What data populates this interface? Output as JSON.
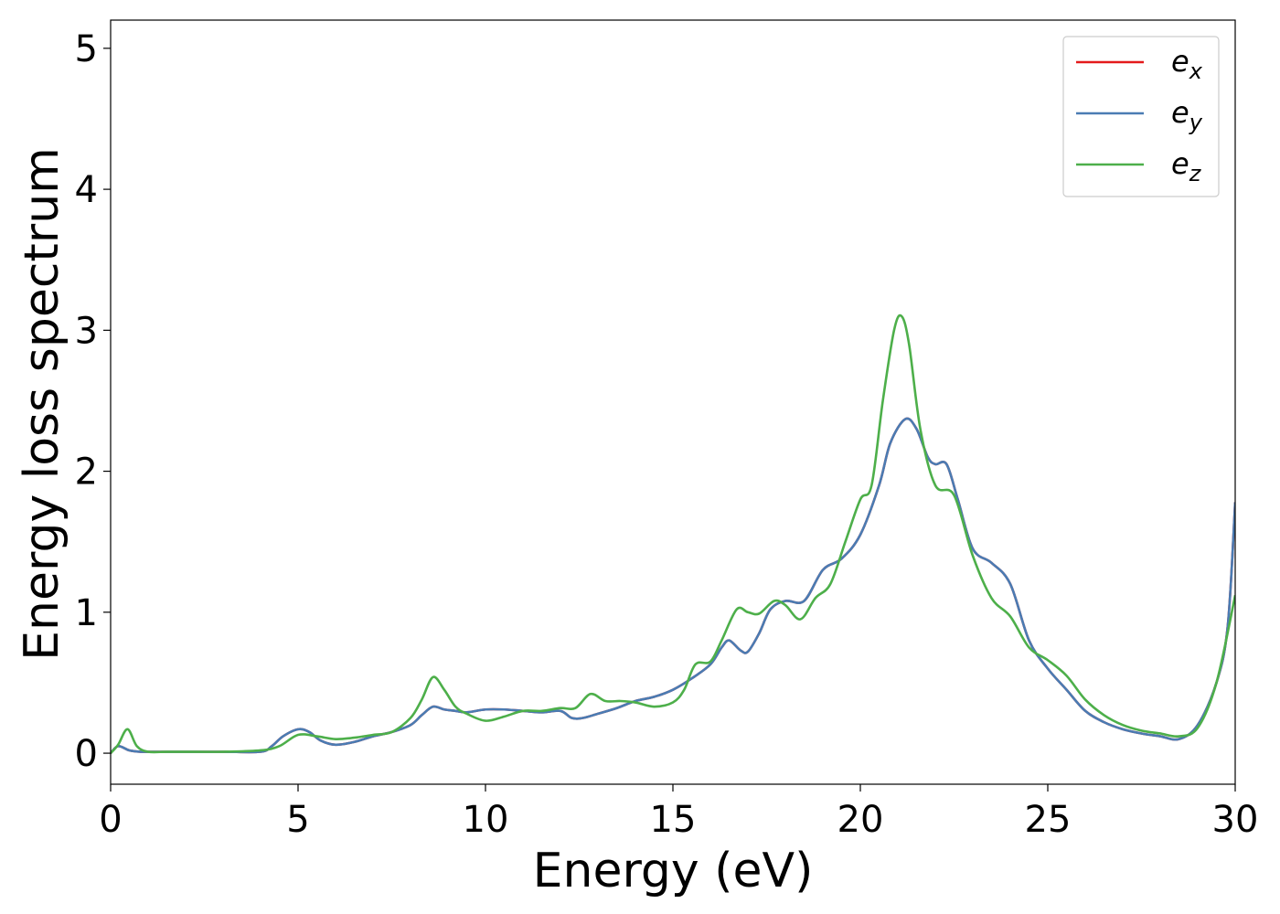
{
  "chart_data": {
    "type": "line",
    "xlabel": "Energy (eV)",
    "ylabel": "Energy loss spectrum",
    "xlim": [
      0,
      30
    ],
    "ylim": [
      -0.22,
      5.2
    ],
    "xticks": [
      0,
      5,
      10,
      15,
      20,
      25,
      30
    ],
    "yticks": [
      0,
      1,
      2,
      3,
      4,
      5
    ],
    "grid": false,
    "legend_position": "top-right",
    "series": [
      {
        "name": "e_x",
        "label_base": "e",
        "label_sub": "x",
        "color": "#e41a1c",
        "x": [
          0,
          0.2,
          0.5,
          0.8,
          1,
          1.5,
          2,
          3,
          4,
          4.3,
          4.6,
          5,
          5.3,
          5.6,
          6,
          6.5,
          7,
          7.5,
          8,
          8.3,
          8.6,
          8.9,
          9.2,
          9.5,
          10,
          10.5,
          11,
          11.5,
          12,
          12.3,
          12.6,
          13,
          13.5,
          14,
          14.5,
          15,
          15.5,
          16,
          16.3,
          16.5,
          16.8,
          17,
          17.3,
          17.6,
          18,
          18.5,
          19,
          19.5,
          20,
          20.5,
          20.8,
          21.2,
          21.5,
          21.8,
          22,
          22.3,
          22.6,
          23,
          23.5,
          24,
          24.5,
          25,
          25.5,
          26,
          26.5,
          27,
          27.5,
          28,
          28.5,
          29,
          29.5,
          29.8,
          30
        ],
        "y": [
          0,
          0.05,
          0.02,
          0.01,
          0.01,
          0.01,
          0.01,
          0.01,
          0.01,
          0.05,
          0.12,
          0.17,
          0.15,
          0.09,
          0.06,
          0.08,
          0.12,
          0.15,
          0.2,
          0.27,
          0.33,
          0.31,
          0.3,
          0.29,
          0.31,
          0.31,
          0.3,
          0.29,
          0.3,
          0.25,
          0.25,
          0.28,
          0.32,
          0.37,
          0.4,
          0.45,
          0.53,
          0.63,
          0.75,
          0.8,
          0.73,
          0.72,
          0.85,
          1.02,
          1.08,
          1.08,
          1.3,
          1.38,
          1.55,
          1.9,
          2.2,
          2.37,
          2.3,
          2.1,
          2.05,
          2.05,
          1.8,
          1.45,
          1.35,
          1.2,
          0.8,
          0.6,
          0.45,
          0.3,
          0.22,
          0.17,
          0.14,
          0.12,
          0.1,
          0.2,
          0.5,
          0.9,
          1.78
        ]
      },
      {
        "name": "e_y",
        "label_base": "e",
        "label_sub": "y",
        "color": "#4a7cb3",
        "x": [
          0,
          0.2,
          0.5,
          0.8,
          1,
          1.5,
          2,
          3,
          4,
          4.3,
          4.6,
          5,
          5.3,
          5.6,
          6,
          6.5,
          7,
          7.5,
          8,
          8.3,
          8.6,
          8.9,
          9.2,
          9.5,
          10,
          10.5,
          11,
          11.5,
          12,
          12.3,
          12.6,
          13,
          13.5,
          14,
          14.5,
          15,
          15.5,
          16,
          16.3,
          16.5,
          16.8,
          17,
          17.3,
          17.6,
          18,
          18.5,
          19,
          19.5,
          20,
          20.5,
          20.8,
          21.2,
          21.5,
          21.8,
          22,
          22.3,
          22.6,
          23,
          23.5,
          24,
          24.5,
          25,
          25.5,
          26,
          26.5,
          27,
          27.5,
          28,
          28.5,
          29,
          29.5,
          29.8,
          30
        ],
        "y": [
          0,
          0.05,
          0.02,
          0.01,
          0.01,
          0.01,
          0.01,
          0.01,
          0.01,
          0.05,
          0.12,
          0.17,
          0.15,
          0.09,
          0.06,
          0.08,
          0.12,
          0.15,
          0.2,
          0.27,
          0.33,
          0.31,
          0.3,
          0.29,
          0.31,
          0.31,
          0.3,
          0.29,
          0.3,
          0.25,
          0.25,
          0.28,
          0.32,
          0.37,
          0.4,
          0.45,
          0.53,
          0.63,
          0.75,
          0.8,
          0.73,
          0.72,
          0.85,
          1.02,
          1.08,
          1.08,
          1.3,
          1.38,
          1.55,
          1.9,
          2.2,
          2.37,
          2.3,
          2.1,
          2.05,
          2.05,
          1.8,
          1.45,
          1.35,
          1.2,
          0.8,
          0.6,
          0.45,
          0.3,
          0.22,
          0.17,
          0.14,
          0.12,
          0.1,
          0.2,
          0.5,
          0.9,
          1.78
        ]
      },
      {
        "name": "e_z",
        "label_base": "e",
        "label_sub": "z",
        "color": "#4daf4a",
        "x": [
          0,
          0.2,
          0.45,
          0.7,
          1,
          1.5,
          2,
          3,
          4,
          4.5,
          5,
          5.5,
          6,
          6.5,
          7,
          7.5,
          8,
          8.3,
          8.6,
          8.9,
          9.2,
          9.5,
          10,
          10.5,
          11,
          11.5,
          12,
          12.4,
          12.8,
          13.2,
          13.6,
          14,
          14.5,
          15,
          15.3,
          15.6,
          16,
          16.3,
          16.7,
          17,
          17.3,
          17.7,
          18,
          18.4,
          18.8,
          19.2,
          19.6,
          20,
          20.3,
          20.6,
          20.9,
          21.1,
          21.3,
          21.6,
          22,
          22.5,
          23,
          23.5,
          24,
          24.5,
          25,
          25.5,
          26,
          26.5,
          27,
          27.5,
          28,
          28.5,
          29,
          29.5,
          30
        ],
        "y": [
          0,
          0.06,
          0.17,
          0.05,
          0.01,
          0.01,
          0.01,
          0.01,
          0.02,
          0.05,
          0.13,
          0.12,
          0.1,
          0.11,
          0.13,
          0.15,
          0.25,
          0.38,
          0.54,
          0.45,
          0.33,
          0.28,
          0.23,
          0.26,
          0.3,
          0.3,
          0.32,
          0.32,
          0.42,
          0.37,
          0.37,
          0.36,
          0.33,
          0.36,
          0.45,
          0.63,
          0.65,
          0.8,
          1.02,
          1.0,
          0.99,
          1.08,
          1.05,
          0.95,
          1.1,
          1.2,
          1.5,
          1.8,
          1.9,
          2.5,
          3.0,
          3.1,
          2.9,
          2.3,
          1.9,
          1.83,
          1.4,
          1.1,
          0.97,
          0.75,
          0.66,
          0.55,
          0.38,
          0.27,
          0.2,
          0.16,
          0.14,
          0.12,
          0.18,
          0.5,
          1.12
        ]
      }
    ]
  }
}
